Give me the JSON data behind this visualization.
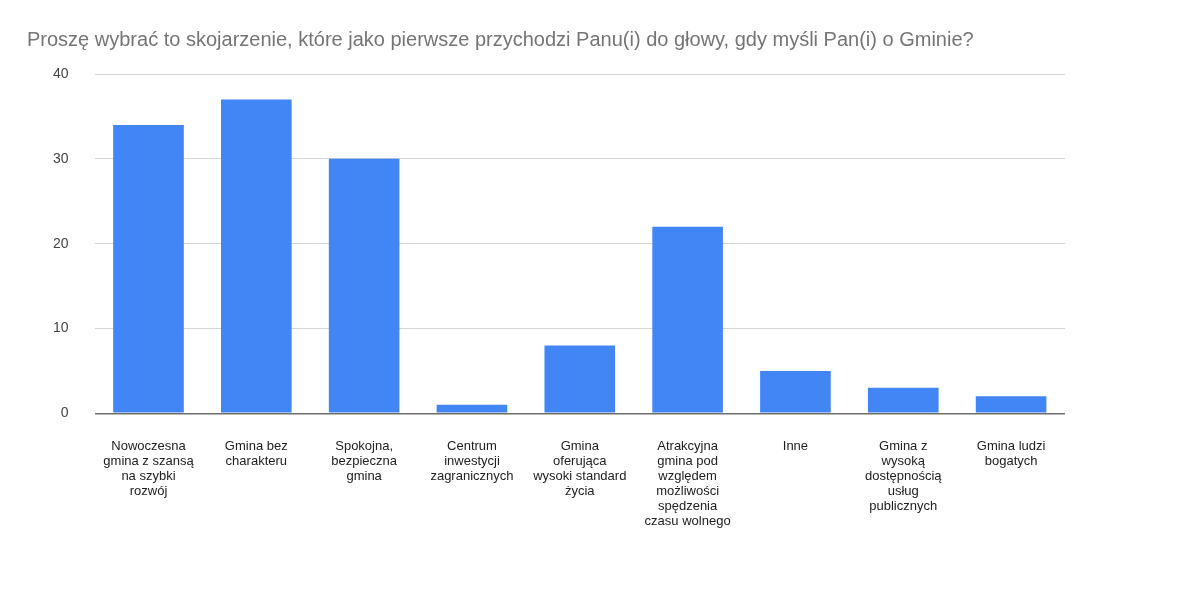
{
  "chart_data": {
    "type": "bar",
    "title": "Proszę wybrać to skojarzenie, które jako pierwsze przychodzi Panu(i) do głowy, gdy myśli Pan(i) o Gminie?",
    "categories": [
      "Nowoczesna gmina z szansą na szybki rozwój",
      "Gmina bez charakteru",
      "Spokojna, bezpieczna gmina",
      "Centrum inwestycji zagranicznych",
      "Gmina oferująca wysoki standard życia",
      "Atrakcyjna gmina pod względem możliwości spędzenia czasu wolnego",
      "Inne",
      "Gmina z wysoką dostępnością usług publicznych",
      "Gmina ludzi bogatych"
    ],
    "values": [
      34,
      37,
      30,
      1,
      8,
      22,
      5,
      3,
      2
    ],
    "color": "#4285f4",
    "ylim": [
      0,
      40
    ],
    "yticks": [
      0,
      10,
      20,
      30,
      40
    ],
    "grid": "y"
  }
}
